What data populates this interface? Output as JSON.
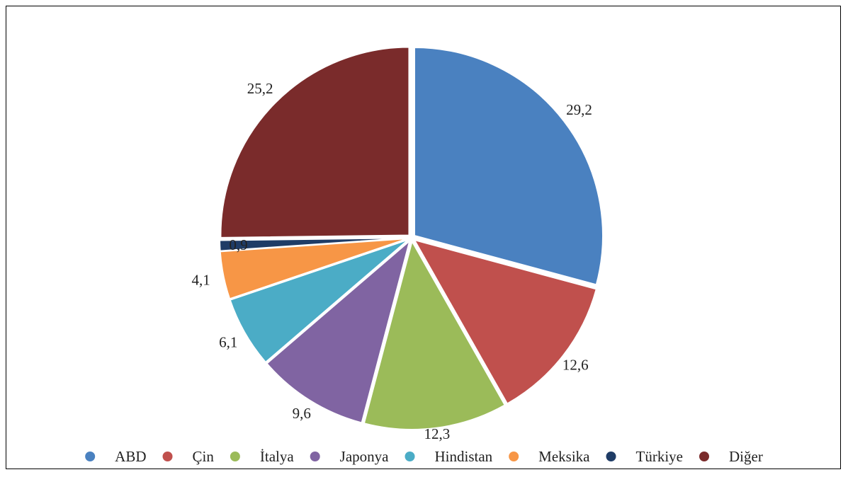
{
  "chart_data": {
    "type": "pie",
    "categories": [
      "ABD",
      "Çin",
      "İtalya",
      "Japonya",
      "Hindistan",
      "Meksika",
      "Türkiye",
      "Diğer"
    ],
    "values": [
      29.2,
      12.6,
      12.3,
      9.6,
      6.1,
      4.1,
      0.9,
      25.2
    ],
    "data_labels": [
      "29,2",
      "12,6",
      "12,3",
      "9,6",
      "6,1",
      "4,1",
      "0,9",
      "25,2"
    ],
    "colors": [
      "#4a81c0",
      "#c0504d",
      "#9bbb59",
      "#8064a2",
      "#4bacc6",
      "#f79646",
      "#1f3c66",
      "#7a2b2b"
    ],
    "title": "",
    "legend_placement": "bottom",
    "start_angle_deg": 0,
    "direction": "clockwise"
  }
}
